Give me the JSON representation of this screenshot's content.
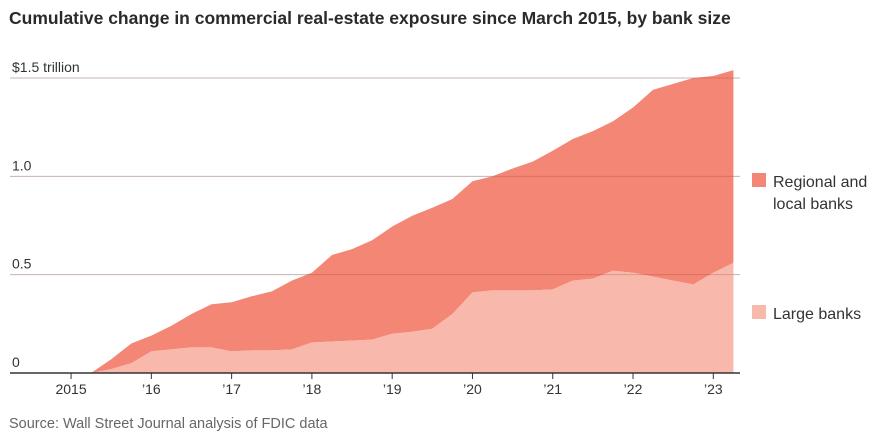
{
  "title": "Cumulative change in commercial real-estate exposure since March 2015, by bank size",
  "source": "Source: Wall Street Journal analysis of FDIC data",
  "colors": {
    "regional": "#f48675",
    "large": "#f8b8ab",
    "gridline": "#dcdcdc",
    "axis": "#333333"
  },
  "chart_data": {
    "type": "area",
    "stacked": true,
    "x": [
      2015.25,
      2015.5,
      2015.75,
      2016.0,
      2016.25,
      2016.5,
      2016.75,
      2017.0,
      2017.25,
      2017.5,
      2017.75,
      2018.0,
      2018.25,
      2018.5,
      2018.75,
      2019.0,
      2019.25,
      2019.5,
      2019.75,
      2020.0,
      2020.25,
      2020.5,
      2020.75,
      2021.0,
      2021.25,
      2021.5,
      2021.75,
      2022.0,
      2022.25,
      2022.5,
      2022.75,
      2023.0,
      2023.25
    ],
    "series": [
      {
        "name": "Large banks",
        "values": [
          0.0,
          0.02,
          0.05,
          0.11,
          0.12,
          0.13,
          0.13,
          0.11,
          0.115,
          0.115,
          0.12,
          0.155,
          0.16,
          0.165,
          0.17,
          0.2,
          0.21,
          0.225,
          0.3,
          0.41,
          0.42,
          0.42,
          0.42,
          0.425,
          0.47,
          0.48,
          0.52,
          0.51,
          0.49,
          0.47,
          0.45,
          0.51,
          0.56
        ]
      },
      {
        "name": "Regional and local banks",
        "values": [
          0.0,
          0.05,
          0.1,
          0.08,
          0.12,
          0.17,
          0.22,
          0.25,
          0.275,
          0.3,
          0.35,
          0.355,
          0.44,
          0.465,
          0.505,
          0.545,
          0.59,
          0.615,
          0.585,
          0.565,
          0.58,
          0.62,
          0.655,
          0.705,
          0.72,
          0.75,
          0.76,
          0.84,
          0.95,
          1.0,
          1.05,
          1.0,
          0.98
        ]
      }
    ],
    "y_ticks": [
      {
        "value": 0,
        "label": "0"
      },
      {
        "value": 0.5,
        "label": "0.5"
      },
      {
        "value": 1.0,
        "label": "1.0"
      },
      {
        "value": 1.5,
        "label": "$1.5 trillion"
      }
    ],
    "x_ticks": [
      {
        "value": 2015,
        "label": "2015"
      },
      {
        "value": 2016,
        "label": "'16"
      },
      {
        "value": 2017,
        "label": "'17"
      },
      {
        "value": 2018,
        "label": "'18"
      },
      {
        "value": 2019,
        "label": "'19"
      },
      {
        "value": 2020,
        "label": "'20"
      },
      {
        "value": 2021,
        "label": "'21"
      },
      {
        "value": 2022,
        "label": "'22"
      },
      {
        "value": 2023,
        "label": "'23"
      }
    ],
    "xlim": [
      2014.8,
      2023.32
    ],
    "ylim": [
      0,
      1.5
    ],
    "grid": true,
    "legend": [
      {
        "label": "Regional and local banks",
        "lines": [
          "Regional and",
          "local banks"
        ],
        "color_key": "regional"
      },
      {
        "label": "Large banks",
        "lines": [
          "Large banks"
        ],
        "color_key": "large"
      }
    ],
    "legend_position": "right"
  }
}
